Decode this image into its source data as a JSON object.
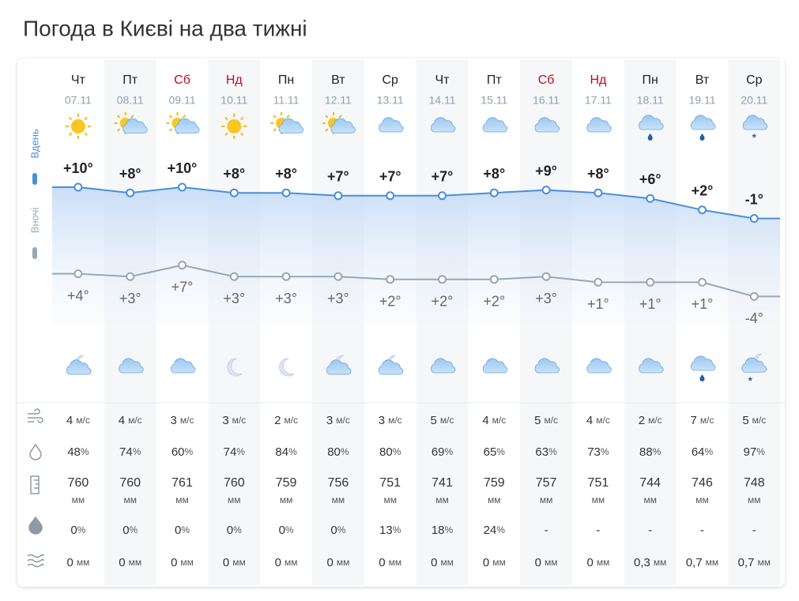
{
  "title": "Погода в Києві на два тижні",
  "legend": {
    "day": "Вдень",
    "night": "Вночі"
  },
  "units": {
    "wind": "м/с",
    "humidity": "%",
    "pressure": "мм",
    "precip_prob": "%",
    "precip": "мм"
  },
  "days": [
    {
      "weekday": "Чт",
      "date": "07.11",
      "weekend": false,
      "day_icon": "sun",
      "night_icon": "moon-cloud",
      "day_temp": {
        "value": 10,
        "label": "+10°"
      },
      "night_temp": {
        "value": 4,
        "label": "+4°"
      },
      "wind": 4,
      "humidity": 48,
      "pressure": 760,
      "precip_prob": 0,
      "precip": 0
    },
    {
      "weekday": "Пт",
      "date": "08.11",
      "weekend": false,
      "day_icon": "sun-cloud",
      "night_icon": "cloud",
      "day_temp": {
        "value": 8,
        "label": "+8°"
      },
      "night_temp": {
        "value": 3,
        "label": "+3°"
      },
      "wind": 4,
      "humidity": 74,
      "pressure": 760,
      "precip_prob": 0,
      "precip": 0
    },
    {
      "weekday": "Сб",
      "date": "09.11",
      "weekend": true,
      "day_icon": "sun-cloud",
      "night_icon": "cloud",
      "day_temp": {
        "value": 10,
        "label": "+10°"
      },
      "night_temp": {
        "value": 7,
        "label": "+7°"
      },
      "wind": 3,
      "humidity": 60,
      "pressure": 761,
      "precip_prob": 0,
      "precip": 0
    },
    {
      "weekday": "Нд",
      "date": "10.11",
      "weekend": true,
      "day_icon": "sun",
      "night_icon": "moon",
      "day_temp": {
        "value": 8,
        "label": "+8°"
      },
      "night_temp": {
        "value": 3,
        "label": "+3°"
      },
      "wind": 3,
      "humidity": 74,
      "pressure": 760,
      "precip_prob": 0,
      "precip": 0
    },
    {
      "weekday": "Пн",
      "date": "11.11",
      "weekend": false,
      "day_icon": "sun-cloud",
      "night_icon": "moon",
      "day_temp": {
        "value": 8,
        "label": "+8°"
      },
      "night_temp": {
        "value": 3,
        "label": "+3°"
      },
      "wind": 2,
      "humidity": 84,
      "pressure": 759,
      "precip_prob": 0,
      "precip": 0
    },
    {
      "weekday": "Вт",
      "date": "12.11",
      "weekend": false,
      "day_icon": "sun-cloud",
      "night_icon": "moon-cloud",
      "day_temp": {
        "value": 7,
        "label": "+7°"
      },
      "night_temp": {
        "value": 3,
        "label": "+3°"
      },
      "wind": 3,
      "humidity": 80,
      "pressure": 756,
      "precip_prob": 0,
      "precip": 0
    },
    {
      "weekday": "Ср",
      "date": "13.11",
      "weekend": false,
      "day_icon": "cloud",
      "night_icon": "moon-cloud",
      "day_temp": {
        "value": 7,
        "label": "+7°"
      },
      "night_temp": {
        "value": 2,
        "label": "+2°"
      },
      "wind": 3,
      "humidity": 80,
      "pressure": 751,
      "precip_prob": 13,
      "precip": 0
    },
    {
      "weekday": "Чт",
      "date": "14.11",
      "weekend": false,
      "day_icon": "cloud",
      "night_icon": "cloud",
      "day_temp": {
        "value": 7,
        "label": "+7°"
      },
      "night_temp": {
        "value": 2,
        "label": "+2°"
      },
      "wind": 5,
      "humidity": 69,
      "pressure": 741,
      "precip_prob": 18,
      "precip": 0
    },
    {
      "weekday": "Пт",
      "date": "15.11",
      "weekend": false,
      "day_icon": "cloud",
      "night_icon": "cloud",
      "day_temp": {
        "value": 8,
        "label": "+8°"
      },
      "night_temp": {
        "value": 2,
        "label": "+2°"
      },
      "wind": 4,
      "humidity": 65,
      "pressure": 759,
      "precip_prob": 24,
      "precip": 0
    },
    {
      "weekday": "Сб",
      "date": "16.11",
      "weekend": true,
      "day_icon": "cloud",
      "night_icon": "cloud",
      "day_temp": {
        "value": 9,
        "label": "+9°"
      },
      "night_temp": {
        "value": 3,
        "label": "+3°"
      },
      "wind": 5,
      "humidity": 63,
      "pressure": 757,
      "precip_prob": "-",
      "precip": 0
    },
    {
      "weekday": "Нд",
      "date": "17.11",
      "weekend": true,
      "day_icon": "cloud",
      "night_icon": "cloud",
      "day_temp": {
        "value": 8,
        "label": "+8°"
      },
      "night_temp": {
        "value": 1,
        "label": "+1°"
      },
      "wind": 4,
      "humidity": 73,
      "pressure": 751,
      "precip_prob": "-",
      "precip": 0
    },
    {
      "weekday": "Пн",
      "date": "18.11",
      "weekend": false,
      "day_icon": "rain",
      "night_icon": "cloud",
      "day_temp": {
        "value": 6,
        "label": "+6°"
      },
      "night_temp": {
        "value": 1,
        "label": "+1°"
      },
      "wind": 2,
      "humidity": 88,
      "pressure": 744,
      "precip_prob": "-",
      "precip": "0,3"
    },
    {
      "weekday": "Вт",
      "date": "19.11",
      "weekend": false,
      "day_icon": "rain",
      "night_icon": "rain",
      "day_temp": {
        "value": 2,
        "label": "+2°"
      },
      "night_temp": {
        "value": 1,
        "label": "+1°"
      },
      "wind": 7,
      "humidity": 64,
      "pressure": 746,
      "precip_prob": "-",
      "precip": "0,7"
    },
    {
      "weekday": "Ср",
      "date": "20.11",
      "weekend": false,
      "day_icon": "snow",
      "night_icon": "moon-snow",
      "day_temp": {
        "value": -1,
        "label": "-1°"
      },
      "night_temp": {
        "value": -4,
        "label": "-4°"
      },
      "wind": 5,
      "humidity": 97,
      "pressure": 748,
      "precip_prob": "-",
      "precip": "0,7"
    }
  ]
}
